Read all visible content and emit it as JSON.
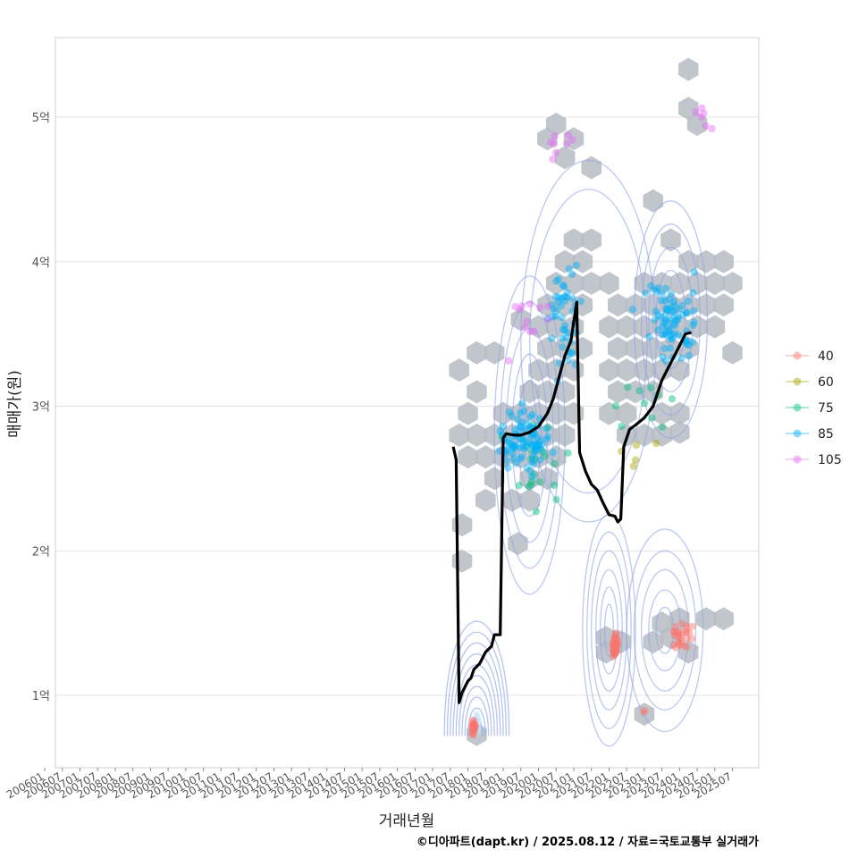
{
  "chart_data": {
    "type": "scatter",
    "title": "",
    "xlabel": "거래년월",
    "ylabel": "매매가(원)",
    "caption": "©디아파트(dapt.kr) / 2025.08.12 / 자료=국토교통부 실거래가",
    "xlim": [
      "2006-01",
      "2025-12"
    ],
    "ylim": [
      0.5,
      5.55
    ],
    "y_unit": "억",
    "y_ticks": [
      {
        "value": 1,
        "label": "1억"
      },
      {
        "value": 2,
        "label": "2억"
      },
      {
        "value": 3,
        "label": "3억"
      },
      {
        "value": 4,
        "label": "4억"
      },
      {
        "value": 5,
        "label": "5억"
      }
    ],
    "x_ticks": [
      "200601",
      "200607",
      "200701",
      "200707",
      "200801",
      "200807",
      "200901",
      "200907",
      "201001",
      "201007",
      "201101",
      "201107",
      "201201",
      "201207",
      "201301",
      "201307",
      "201401",
      "201407",
      "201501",
      "201507",
      "201601",
      "201607",
      "201701",
      "201707",
      "201801",
      "201807",
      "201901",
      "201907",
      "202001",
      "202007",
      "202101",
      "202107",
      "202201",
      "202207",
      "202301",
      "202307",
      "202401",
      "202407",
      "202501",
      "202507"
    ],
    "legend": {
      "position": "right",
      "entries": [
        {
          "label": "40",
          "color": "#F8766D"
        },
        {
          "label": "60",
          "color": "#A3A500"
        },
        {
          "label": "75",
          "color": "#00BF7D"
        },
        {
          "label": "85",
          "color": "#00B0F6"
        },
        {
          "label": "105",
          "color": "#E76BF3"
        }
      ]
    },
    "colors": {
      "hex_fill": "#b6bcc3",
      "contour": "#8fa4e6",
      "trend_line": "#000000",
      "grid": "#e3e3e3",
      "panel_border": "#cfcfcf"
    },
    "trend_line": [
      [
        "2017-08",
        2.72
      ],
      [
        "2017-09",
        2.63
      ],
      [
        "2017-10",
        0.95
      ],
      [
        "2017-11",
        1.02
      ],
      [
        "2017-12",
        1.06
      ],
      [
        "2018-01",
        1.1
      ],
      [
        "2018-02",
        1.12
      ],
      [
        "2018-03",
        1.18
      ],
      [
        "2018-05",
        1.22
      ],
      [
        "2018-07",
        1.3
      ],
      [
        "2018-09",
        1.34
      ],
      [
        "2018-10",
        1.42
      ],
      [
        "2018-12",
        1.42
      ],
      [
        "2019-01",
        2.78
      ],
      [
        "2019-02",
        2.81
      ],
      [
        "2019-05",
        2.8
      ],
      [
        "2019-07",
        2.8
      ],
      [
        "2019-10",
        2.82
      ],
      [
        "2020-01",
        2.86
      ],
      [
        "2020-04",
        2.95
      ],
      [
        "2020-06",
        3.05
      ],
      [
        "2020-08",
        3.2
      ],
      [
        "2020-10",
        3.35
      ],
      [
        "2020-12",
        3.45
      ],
      [
        "2021-02",
        3.72
      ],
      [
        "2021-03",
        2.68
      ],
      [
        "2021-05",
        2.55
      ],
      [
        "2021-07",
        2.46
      ],
      [
        "2021-09",
        2.42
      ],
      [
        "2021-11",
        2.33
      ],
      [
        "2022-01",
        2.25
      ],
      [
        "2022-03",
        2.24
      ],
      [
        "2022-04",
        2.2
      ],
      [
        "2022-05",
        2.22
      ],
      [
        "2022-06",
        2.72
      ],
      [
        "2022-08",
        2.84
      ],
      [
        "2022-10",
        2.87
      ],
      [
        "2023-01",
        2.92
      ],
      [
        "2023-04",
        3.0
      ],
      [
        "2023-07",
        3.18
      ],
      [
        "2023-10",
        3.3
      ],
      [
        "2024-01",
        3.42
      ],
      [
        "2024-03",
        3.5
      ],
      [
        "2024-05",
        3.51
      ]
    ],
    "hexbin_centers": [
      [
        "2018-04",
        0.73
      ],
      [
        "2023-01",
        0.87
      ],
      [
        "2021-12",
        1.3
      ],
      [
        "2021-12",
        1.4
      ],
      [
        "2022-05",
        1.37
      ],
      [
        "2023-04",
        1.37
      ],
      [
        "2023-10",
        1.4
      ],
      [
        "2023-07",
        1.5
      ],
      [
        "2024-01",
        1.53
      ],
      [
        "2024-10",
        1.53
      ],
      [
        "2025-04",
        1.53
      ],
      [
        "2024-04",
        1.3
      ],
      [
        "2017-11",
        1.93
      ],
      [
        "2017-11",
        2.18
      ],
      [
        "2019-06",
        2.05
      ],
      [
        "2018-07",
        2.35
      ],
      [
        "2019-04",
        2.35
      ],
      [
        "2019-10",
        2.35
      ],
      [
        "2018-10",
        2.5
      ],
      [
        "2019-10",
        2.5
      ],
      [
        "2020-04",
        2.5
      ],
      [
        "2018-01",
        2.65
      ],
      [
        "2018-07",
        2.65
      ],
      [
        "2019-01",
        2.65
      ],
      [
        "2019-07",
        2.65
      ],
      [
        "2020-01",
        2.65
      ],
      [
        "2020-07",
        2.65
      ],
      [
        "2017-10",
        2.8
      ],
      [
        "2018-04",
        2.8
      ],
      [
        "2018-10",
        2.8
      ],
      [
        "2019-04",
        2.8
      ],
      [
        "2019-10",
        2.8
      ],
      [
        "2020-04",
        2.8
      ],
      [
        "2020-10",
        2.8
      ],
      [
        "2022-07",
        2.8
      ],
      [
        "2023-01",
        2.8
      ],
      [
        "2023-07",
        2.8
      ],
      [
        "2024-01",
        2.82
      ],
      [
        "2018-01",
        2.95
      ],
      [
        "2019-01",
        2.95
      ],
      [
        "2019-07",
        2.95
      ],
      [
        "2020-01",
        2.95
      ],
      [
        "2020-07",
        2.95
      ],
      [
        "2021-01",
        2.95
      ],
      [
        "2022-01",
        2.95
      ],
      [
        "2022-07",
        2.95
      ],
      [
        "2023-07",
        2.95
      ],
      [
        "2024-01",
        2.95
      ],
      [
        "2018-04",
        3.1
      ],
      [
        "2019-10",
        3.1
      ],
      [
        "2020-04",
        3.1
      ],
      [
        "2020-10",
        3.1
      ],
      [
        "2022-04",
        3.1
      ],
      [
        "2022-10",
        3.1
      ],
      [
        "2023-04",
        3.1
      ],
      [
        "2017-10",
        3.25
      ],
      [
        "2020-01",
        3.25
      ],
      [
        "2020-07",
        3.25
      ],
      [
        "2021-01",
        3.25
      ],
      [
        "2022-01",
        3.25
      ],
      [
        "2022-07",
        3.25
      ],
      [
        "2023-01",
        3.25
      ],
      [
        "2023-07",
        3.25
      ],
      [
        "2024-01",
        3.25
      ],
      [
        "2018-04",
        3.37
      ],
      [
        "2018-10",
        3.37
      ],
      [
        "2020-04",
        3.4
      ],
      [
        "2020-10",
        3.4
      ],
      [
        "2021-04",
        3.4
      ],
      [
        "2022-04",
        3.4
      ],
      [
        "2022-10",
        3.4
      ],
      [
        "2023-04",
        3.4
      ],
      [
        "2023-10",
        3.4
      ],
      [
        "2024-04",
        3.4
      ],
      [
        "2025-07",
        3.37
      ],
      [
        "2019-07",
        3.6
      ],
      [
        "2020-01",
        3.55
      ],
      [
        "2020-07",
        3.55
      ],
      [
        "2021-01",
        3.55
      ],
      [
        "2022-01",
        3.55
      ],
      [
        "2022-07",
        3.55
      ],
      [
        "2023-01",
        3.55
      ],
      [
        "2023-07",
        3.55
      ],
      [
        "2024-01",
        3.55
      ],
      [
        "2024-07",
        3.55
      ],
      [
        "2025-01",
        3.55
      ],
      [
        "2020-04",
        3.7
      ],
      [
        "2020-10",
        3.7
      ],
      [
        "2021-04",
        3.7
      ],
      [
        "2022-04",
        3.7
      ],
      [
        "2022-10",
        3.7
      ],
      [
        "2023-04",
        3.7
      ],
      [
        "2023-10",
        3.7
      ],
      [
        "2024-04",
        3.7
      ],
      [
        "2024-10",
        3.7
      ],
      [
        "2025-04",
        3.7
      ],
      [
        "2020-07",
        3.85
      ],
      [
        "2021-01",
        3.85
      ],
      [
        "2021-07",
        3.85
      ],
      [
        "2022-01",
        3.85
      ],
      [
        "2023-01",
        3.85
      ],
      [
        "2023-07",
        3.85
      ],
      [
        "2024-01",
        3.85
      ],
      [
        "2024-07",
        3.85
      ],
      [
        "2025-01",
        3.85
      ],
      [
        "2025-07",
        3.85
      ],
      [
        "2020-10",
        4.0
      ],
      [
        "2021-04",
        4.0
      ],
      [
        "2024-04",
        4.0
      ],
      [
        "2024-10",
        4.0
      ],
      [
        "2025-04",
        4.0
      ],
      [
        "2021-01",
        4.15
      ],
      [
        "2021-07",
        4.15
      ],
      [
        "2023-10",
        4.15
      ],
      [
        "2023-04",
        4.42
      ],
      [
        "2020-04",
        4.85
      ],
      [
        "2020-07",
        4.95
      ],
      [
        "2021-01",
        4.85
      ],
      [
        "2020-10",
        4.72
      ],
      [
        "2021-07",
        4.65
      ],
      [
        "2024-04",
        5.06
      ],
      [
        "2024-07",
        4.95
      ],
      [
        "2024-04",
        5.33
      ]
    ],
    "contours": [
      {
        "center": [
          "2018-04",
          0.9
        ],
        "half_width_months": [
          2,
          3,
          4,
          5,
          6,
          7,
          8,
          9,
          10,
          11
        ],
        "height": [
          0.12,
          0.22,
          0.32,
          0.42,
          0.52,
          0.62,
          0.72,
          0.82,
          0.92,
          1.02
        ],
        "base": 0.72
      },
      {
        "center": [
          "2022-01",
          1.45
        ],
        "radii": [
          [
            1.5,
            0.18
          ],
          [
            3,
            0.3
          ],
          [
            4.5,
            0.42
          ],
          [
            6,
            0.55
          ],
          [
            7.5,
            0.68
          ],
          [
            9,
            0.8
          ]
        ]
      },
      {
        "center": [
          "2023-08",
          1.45
        ],
        "radii": [
          [
            3,
            0.16
          ],
          [
            5.5,
            0.28
          ],
          [
            8,
            0.42
          ],
          [
            10.5,
            0.55
          ],
          [
            13,
            0.7
          ]
        ]
      },
      {
        "center": [
          "2019-10",
          2.8
        ],
        "radii": [
          [
            2,
            0.2
          ],
          [
            4,
            0.38
          ],
          [
            6,
            0.56
          ],
          [
            8,
            0.74
          ],
          [
            10,
            0.92
          ],
          [
            12,
            1.1
          ]
        ]
      },
      {
        "center": [
          "2023-10",
          3.6
        ],
        "radii": [
          [
            2.5,
            0.18
          ],
          [
            5,
            0.34
          ],
          [
            7.5,
            0.5
          ],
          [
            10,
            0.66
          ],
          [
            12.5,
            0.82
          ]
        ]
      },
      {
        "center": [
          "2021-06",
          3.45
        ],
        "radii": [
          [
            20,
            1.05
          ],
          [
            23,
            1.25
          ]
        ]
      }
    ],
    "scatter_clusters": [
      {
        "series": "40",
        "center": [
          "2018-03",
          0.78
        ],
        "spread": [
          0.6,
          0.05
        ],
        "count": 22
      },
      {
        "series": "40",
        "center": [
          "2022-03",
          1.35
        ],
        "spread": [
          0.8,
          0.08
        ],
        "count": 40
      },
      {
        "series": "40",
        "center": [
          "2024-01",
          1.42
        ],
        "spread": [
          4.5,
          0.1
        ],
        "count": 26
      },
      {
        "series": "40",
        "center": [
          "2023-01",
          0.89
        ],
        "spread": [
          0.6,
          0.01
        ],
        "count": 2
      },
      {
        "series": "60",
        "center": [
          "2022-07",
          2.7
        ],
        "spread": [
          12,
          0.15
        ],
        "count": 5
      },
      {
        "series": "75",
        "center": [
          "2020-01",
          2.6
        ],
        "spread": [
          12,
          0.35
        ],
        "count": 20
      },
      {
        "series": "75",
        "center": [
          "2023-06",
          3.0
        ],
        "spread": [
          14,
          0.25
        ],
        "count": 10
      },
      {
        "series": "85",
        "center": [
          "2019-08",
          2.75
        ],
        "spread": [
          7,
          0.2
        ],
        "count": 90
      },
      {
        "series": "85",
        "center": [
          "2020-10",
          3.6
        ],
        "spread": [
          6,
          0.35
        ],
        "count": 45
      },
      {
        "series": "85",
        "center": [
          "2023-10",
          3.6
        ],
        "spread": [
          9,
          0.25
        ],
        "count": 75
      },
      {
        "series": "105",
        "center": [
          "2020-09",
          4.78
        ],
        "spread": [
          7,
          0.1
        ],
        "count": 8
      },
      {
        "series": "105",
        "center": [
          "2024-09",
          5.0
        ],
        "spread": [
          3,
          0.15
        ],
        "count": 6
      },
      {
        "series": "105",
        "center": [
          "2019-09",
          3.55
        ],
        "spread": [
          8,
          0.18
        ],
        "count": 12
      }
    ]
  }
}
